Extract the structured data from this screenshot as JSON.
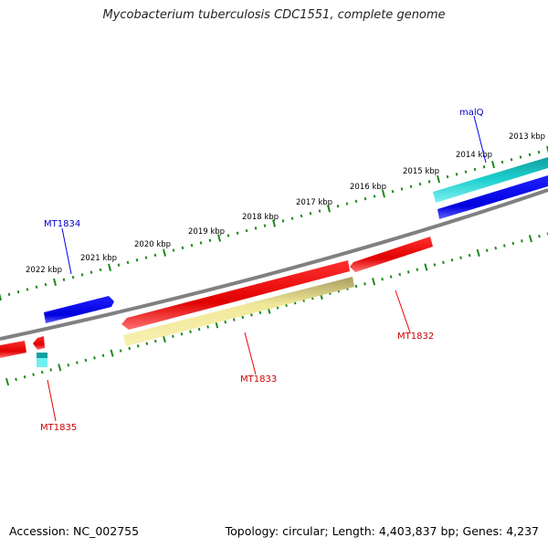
{
  "title": "Mycobacterium tuberculosis CDC1551, complete genome",
  "footer": {
    "accession": "Accession: NC_002755",
    "summary": "Topology: circular; Length: 4,403,837 bp; Genes: 4,237"
  },
  "colors": {
    "backbone": "#808080",
    "ticks": "#1a8a1a",
    "forward_gene_label": "#0000cc",
    "reverse_gene_label": "#cc0000"
  },
  "kbp_labels": [
    "2013 kbp",
    "2014 kbp",
    "2015 kbp",
    "2016 kbp",
    "2017 kbp",
    "2018 kbp",
    "2019 kbp",
    "2020 kbp",
    "2021 kbp",
    "2022 kbp"
  ],
  "genes": [
    {
      "id": "malQ",
      "label": "malQ",
      "strand": "forward",
      "color": "#0000ee"
    },
    {
      "id": "MT1834",
      "label": "MT1834",
      "strand": "forward",
      "color": "#0000ee"
    },
    {
      "id": "MT1832",
      "label": "MT1832",
      "strand": "reverse",
      "color": "#ee0000"
    },
    {
      "id": "MT1833",
      "label": "MT1833",
      "strand": "reverse",
      "color": "#ee0000"
    },
    {
      "id": "MT1835",
      "label": "MT1835",
      "strand": "reverse",
      "color": "#ee0000"
    }
  ]
}
